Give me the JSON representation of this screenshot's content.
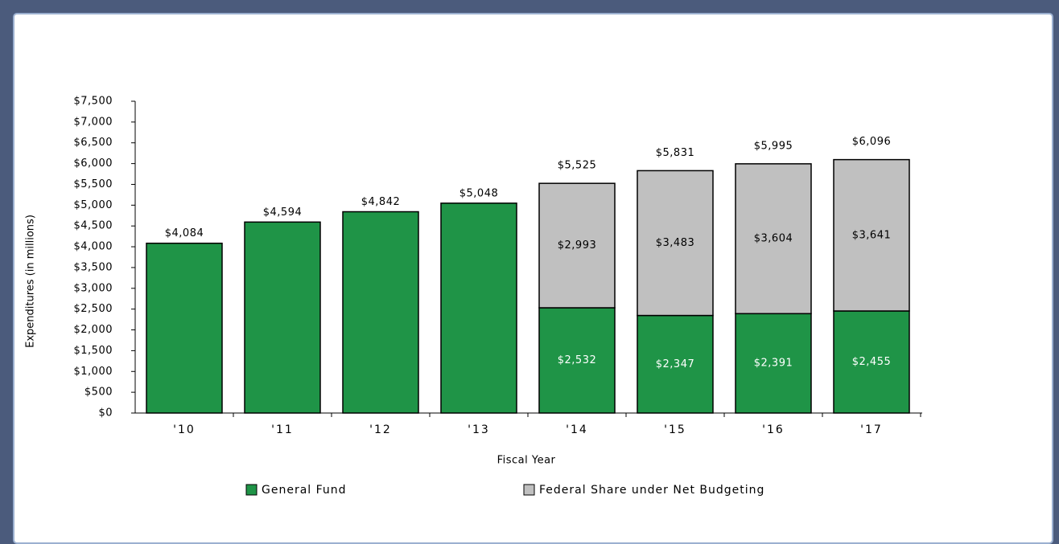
{
  "chart_data": {
    "type": "stacked_bar",
    "x_label": "Fiscal Year",
    "y_label": "Expenditures (in millions)",
    "categories": [
      "'10",
      "'11",
      "'12",
      "'13",
      "'14",
      "'15",
      "'16",
      "'17"
    ],
    "series": [
      {
        "name": "General Fund",
        "color": "#1f9447",
        "values": [
          4084,
          4594,
          4842,
          5048,
          2532,
          2347,
          2391,
          2455
        ],
        "value_labels": [
          null,
          null,
          null,
          null,
          "$2,532",
          "$2,347",
          "$2,391",
          "$2,455"
        ]
      },
      {
        "name": "Federal Share under Net Budgeting",
        "color": "#c0c0c0",
        "values": [
          null,
          null,
          null,
          null,
          2993,
          3483,
          3604,
          3641
        ],
        "value_labels": [
          null,
          null,
          null,
          null,
          "$2,993",
          "$3,483",
          "$3,604",
          "$3,641"
        ]
      }
    ],
    "total_labels": [
      "$4,084",
      "$4,594",
      "$4,842",
      "$5,048",
      "$5,525",
      "$5,831",
      "$5,995",
      "$6,096"
    ],
    "ylim": [
      0,
      7500
    ],
    "yticks": [
      {
        "value": 0,
        "label": "$0"
      },
      {
        "value": 500,
        "label": "$500"
      },
      {
        "value": 1000,
        "label": "$1,000"
      },
      {
        "value": 1500,
        "label": "$1,500"
      },
      {
        "value": 2000,
        "label": "$2,000"
      },
      {
        "value": 2500,
        "label": "$2,500"
      },
      {
        "value": 3000,
        "label": "$3,000"
      },
      {
        "value": 3500,
        "label": "$3,500"
      },
      {
        "value": 4000,
        "label": "$4,000"
      },
      {
        "value": 4500,
        "label": "$4,500"
      },
      {
        "value": 5000,
        "label": "$5,000"
      },
      {
        "value": 5500,
        "label": "$5,500"
      },
      {
        "value": 6000,
        "label": "$6,000"
      },
      {
        "value": 6500,
        "label": "$6,500"
      },
      {
        "value": 7000,
        "label": "$7,000"
      },
      {
        "value": 7500,
        "label": "$7,500"
      }
    ],
    "legend": "bottom",
    "grid": false
  }
}
